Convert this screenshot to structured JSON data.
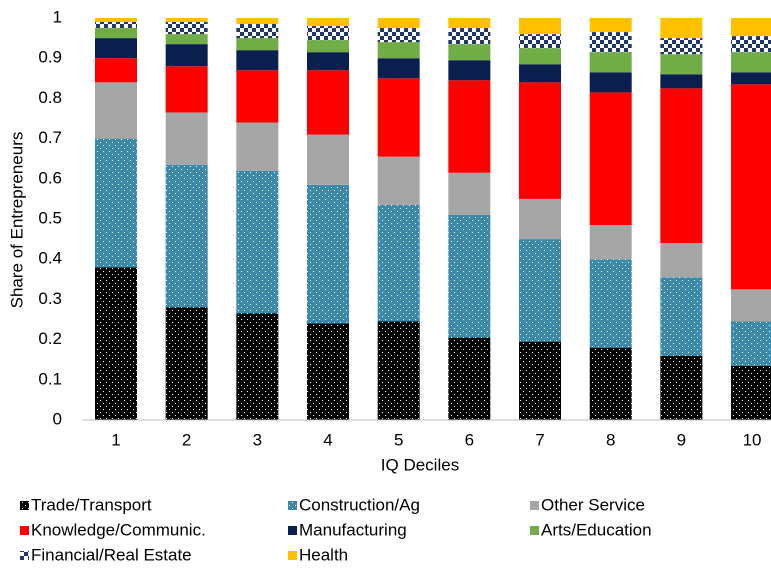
{
  "chart_data": {
    "type": "stacked-bar",
    "x_label": "IQ Deciles",
    "y_label": "Share of Entrepreneurs",
    "categories": [
      "1",
      "2",
      "3",
      "4",
      "5",
      "6",
      "7",
      "8",
      "9",
      "10"
    ],
    "ylim": [
      0,
      1
    ],
    "yticks": [
      0,
      0.1,
      0.2,
      0.3,
      0.4,
      0.5,
      0.6,
      0.7,
      0.8,
      0.9,
      1
    ],
    "legend": "bottom",
    "series": [
      {
        "name": "Trade/Transport",
        "color": "#000000",
        "pattern": "dots",
        "values": [
          0.38,
          0.28,
          0.265,
          0.24,
          0.245,
          0.205,
          0.195,
          0.18,
          0.16,
          0.135
        ]
      },
      {
        "name": "Construction/Ag",
        "color": "#3b8aab",
        "pattern": "dots",
        "values": [
          0.32,
          0.355,
          0.355,
          0.345,
          0.29,
          0.305,
          0.255,
          0.22,
          0.195,
          0.11
        ]
      },
      {
        "name": "Other Service",
        "color": "#a6a6a6",
        "values": [
          0.14,
          0.13,
          0.12,
          0.125,
          0.12,
          0.105,
          0.1,
          0.085,
          0.085,
          0.08
        ]
      },
      {
        "name": "Knowledge/Communic.",
        "color": "#ff0000",
        "values": [
          0.06,
          0.115,
          0.13,
          0.16,
          0.195,
          0.23,
          0.29,
          0.33,
          0.385,
          0.51
        ]
      },
      {
        "name": "Manufacturing",
        "color": "#0b1f4f",
        "values": [
          0.05,
          0.055,
          0.05,
          0.045,
          0.05,
          0.05,
          0.045,
          0.05,
          0.035,
          0.03
        ]
      },
      {
        "name": "Arts/Education",
        "color": "#70ad47",
        "values": [
          0.025,
          0.025,
          0.03,
          0.03,
          0.04,
          0.04,
          0.04,
          0.05,
          0.05,
          0.05
        ]
      },
      {
        "name": "Financial/Real Estate",
        "color": "#1f3864",
        "pattern": "checker",
        "values": [
          0.015,
          0.03,
          0.035,
          0.035,
          0.035,
          0.04,
          0.035,
          0.05,
          0.04,
          0.04
        ]
      },
      {
        "name": "Health",
        "color": "#ffc000",
        "values": [
          0.01,
          0.01,
          0.015,
          0.02,
          0.025,
          0.025,
          0.04,
          0.035,
          0.05,
          0.045
        ]
      }
    ]
  }
}
